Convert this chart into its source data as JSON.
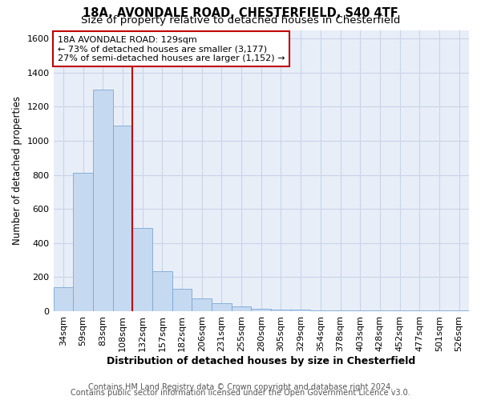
{
  "title1": "18A, AVONDALE ROAD, CHESTERFIELD, S40 4TF",
  "title2": "Size of property relative to detached houses in Chesterfield",
  "xlabel": "Distribution of detached houses by size in Chesterfield",
  "ylabel": "Number of detached properties",
  "categories": [
    "34sqm",
    "59sqm",
    "83sqm",
    "108sqm",
    "132sqm",
    "157sqm",
    "182sqm",
    "206sqm",
    "231sqm",
    "255sqm",
    "280sqm",
    "305sqm",
    "329sqm",
    "354sqm",
    "378sqm",
    "403sqm",
    "428sqm",
    "452sqm",
    "477sqm",
    "501sqm",
    "526sqm"
  ],
  "values": [
    140,
    810,
    1300,
    1090,
    490,
    235,
    130,
    75,
    45,
    28,
    15,
    10,
    8,
    5,
    5,
    5,
    5,
    5,
    5,
    5,
    5
  ],
  "bar_color": "#c5d9f0",
  "bar_edge_color": "#7ba7d4",
  "vline_color": "#c00000",
  "annotation_text": "18A AVONDALE ROAD: 129sqm\n← 73% of detached houses are smaller (3,177)\n27% of semi-detached houses are larger (1,152) →",
  "annotation_box_color": "#ffffff",
  "annotation_box_edge": "#c00000",
  "ylim": [
    0,
    1650
  ],
  "yticks": [
    0,
    200,
    400,
    600,
    800,
    1000,
    1200,
    1400,
    1600
  ],
  "grid_color": "#c8d4e8",
  "bg_color": "#e8eef8",
  "footer1": "Contains HM Land Registry data © Crown copyright and database right 2024.",
  "footer2": "Contains public sector information licensed under the Open Government Licence v3.0.",
  "title_fontsize": 10.5,
  "subtitle_fontsize": 9.5,
  "xlabel_fontsize": 9,
  "ylabel_fontsize": 8.5,
  "tick_fontsize": 8,
  "annot_fontsize": 8,
  "footer_fontsize": 7
}
